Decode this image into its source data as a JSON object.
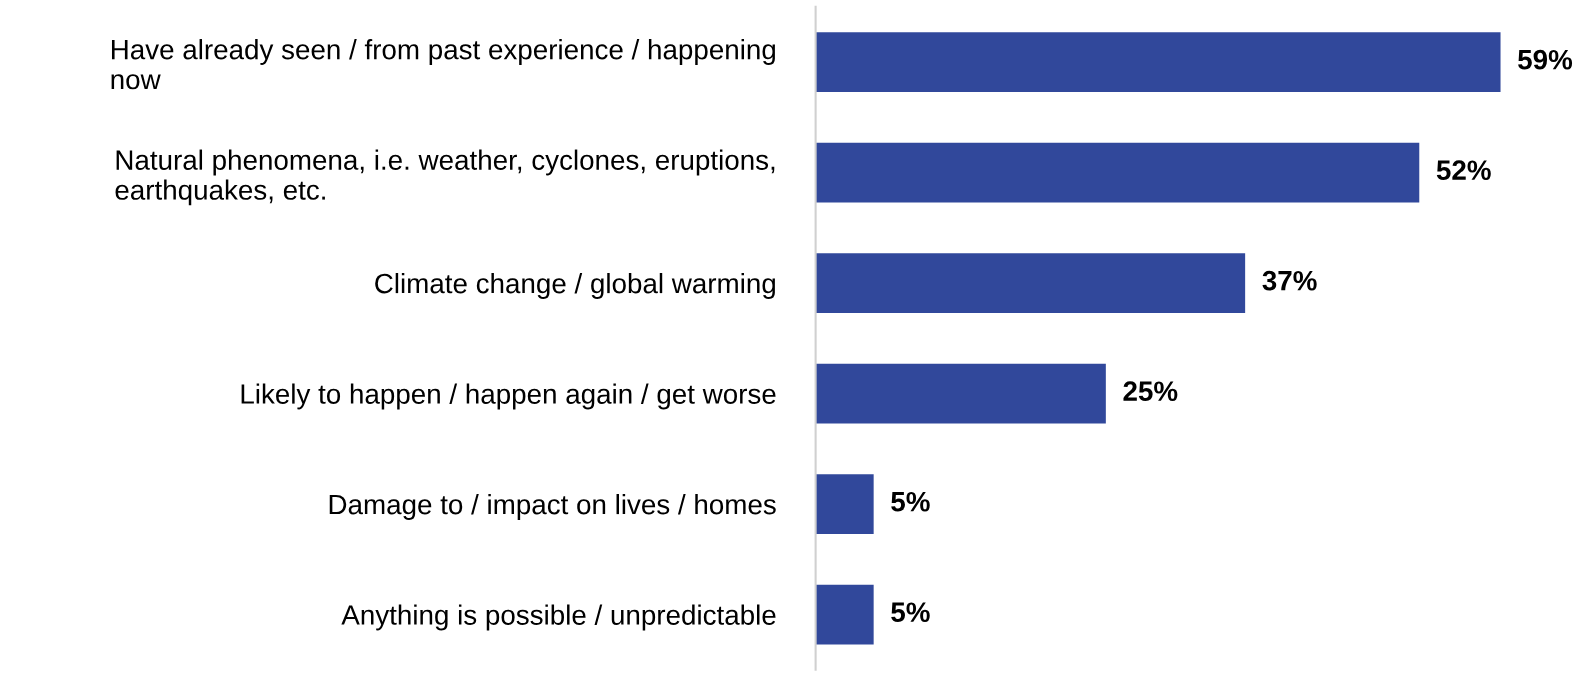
{
  "chart_data": {
    "type": "bar",
    "orientation": "horizontal",
    "categories": [
      "Have already seen / from past experience / happening\nnow",
      "Natural phenomena, i.e. weather, cyclones, eruptions,\nearthquakes, etc.",
      "Climate change / global warming",
      "Likely to happen / happen again / get worse",
      "Damage to / impact on lives / homes",
      "Anything is possible / unpredictable"
    ],
    "values": [
      59,
      52,
      37,
      25,
      5,
      5
    ],
    "value_labels": [
      "59%",
      "52%",
      "37%",
      "25%",
      "5%",
      "5%"
    ],
    "color": "#31489b",
    "grid": false,
    "legend": false
  }
}
